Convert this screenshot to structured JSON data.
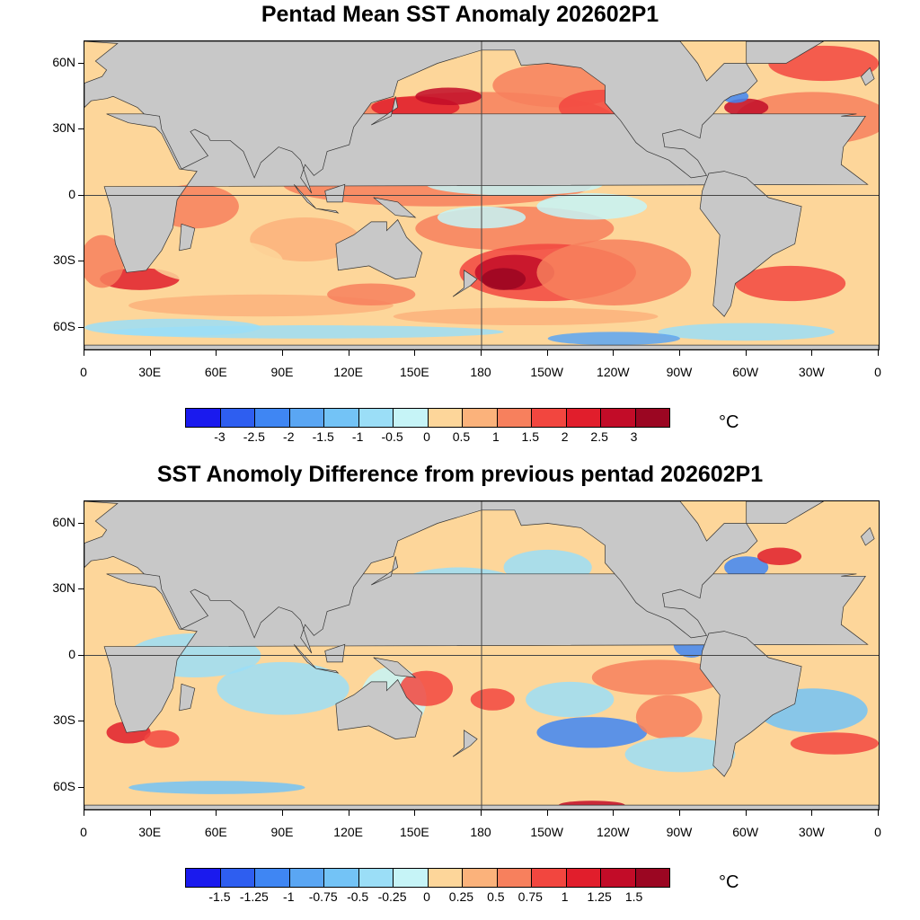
{
  "panels": [
    {
      "title": "Pentad Mean SST Anomaly 202602P1",
      "colorbar_labels": [
        "-3",
        "-2.5",
        "-2",
        "-1.5",
        "-1",
        "-0.5",
        "0",
        "0.5",
        "1",
        "1.5",
        "2",
        "2.5",
        "3"
      ],
      "unit": "°C"
    },
    {
      "title": "SST Anomoly Difference from previous pentad 202602P1",
      "colorbar_labels": [
        "-1.5",
        "-1.25",
        "-1",
        "-0.75",
        "-0.5",
        "-0.25",
        "0",
        "0.25",
        "0.5",
        "0.75",
        "1",
        "1.25",
        "1.5"
      ],
      "unit": "°C"
    }
  ],
  "lat_labels": [
    "60N",
    "30N",
    "0",
    "30S",
    "60S"
  ],
  "lon_labels": [
    "0",
    "30E",
    "60E",
    "90E",
    "120E",
    "150E",
    "180",
    "150W",
    "120W",
    "90W",
    "60W",
    "30W",
    "0"
  ],
  "colors": {
    "scale": [
      "#1a1aee",
      "#2e5ef0",
      "#3f86f3",
      "#5aa6f3",
      "#73c3f6",
      "#9bdef7",
      "#c6f4f7",
      "#fdd69a",
      "#fbb27b",
      "#f7805d",
      "#f2463f",
      "#e11e2c",
      "#c20c28",
      "#9b0622"
    ],
    "land": "#c8c8c8",
    "coast": "#333333"
  }
}
